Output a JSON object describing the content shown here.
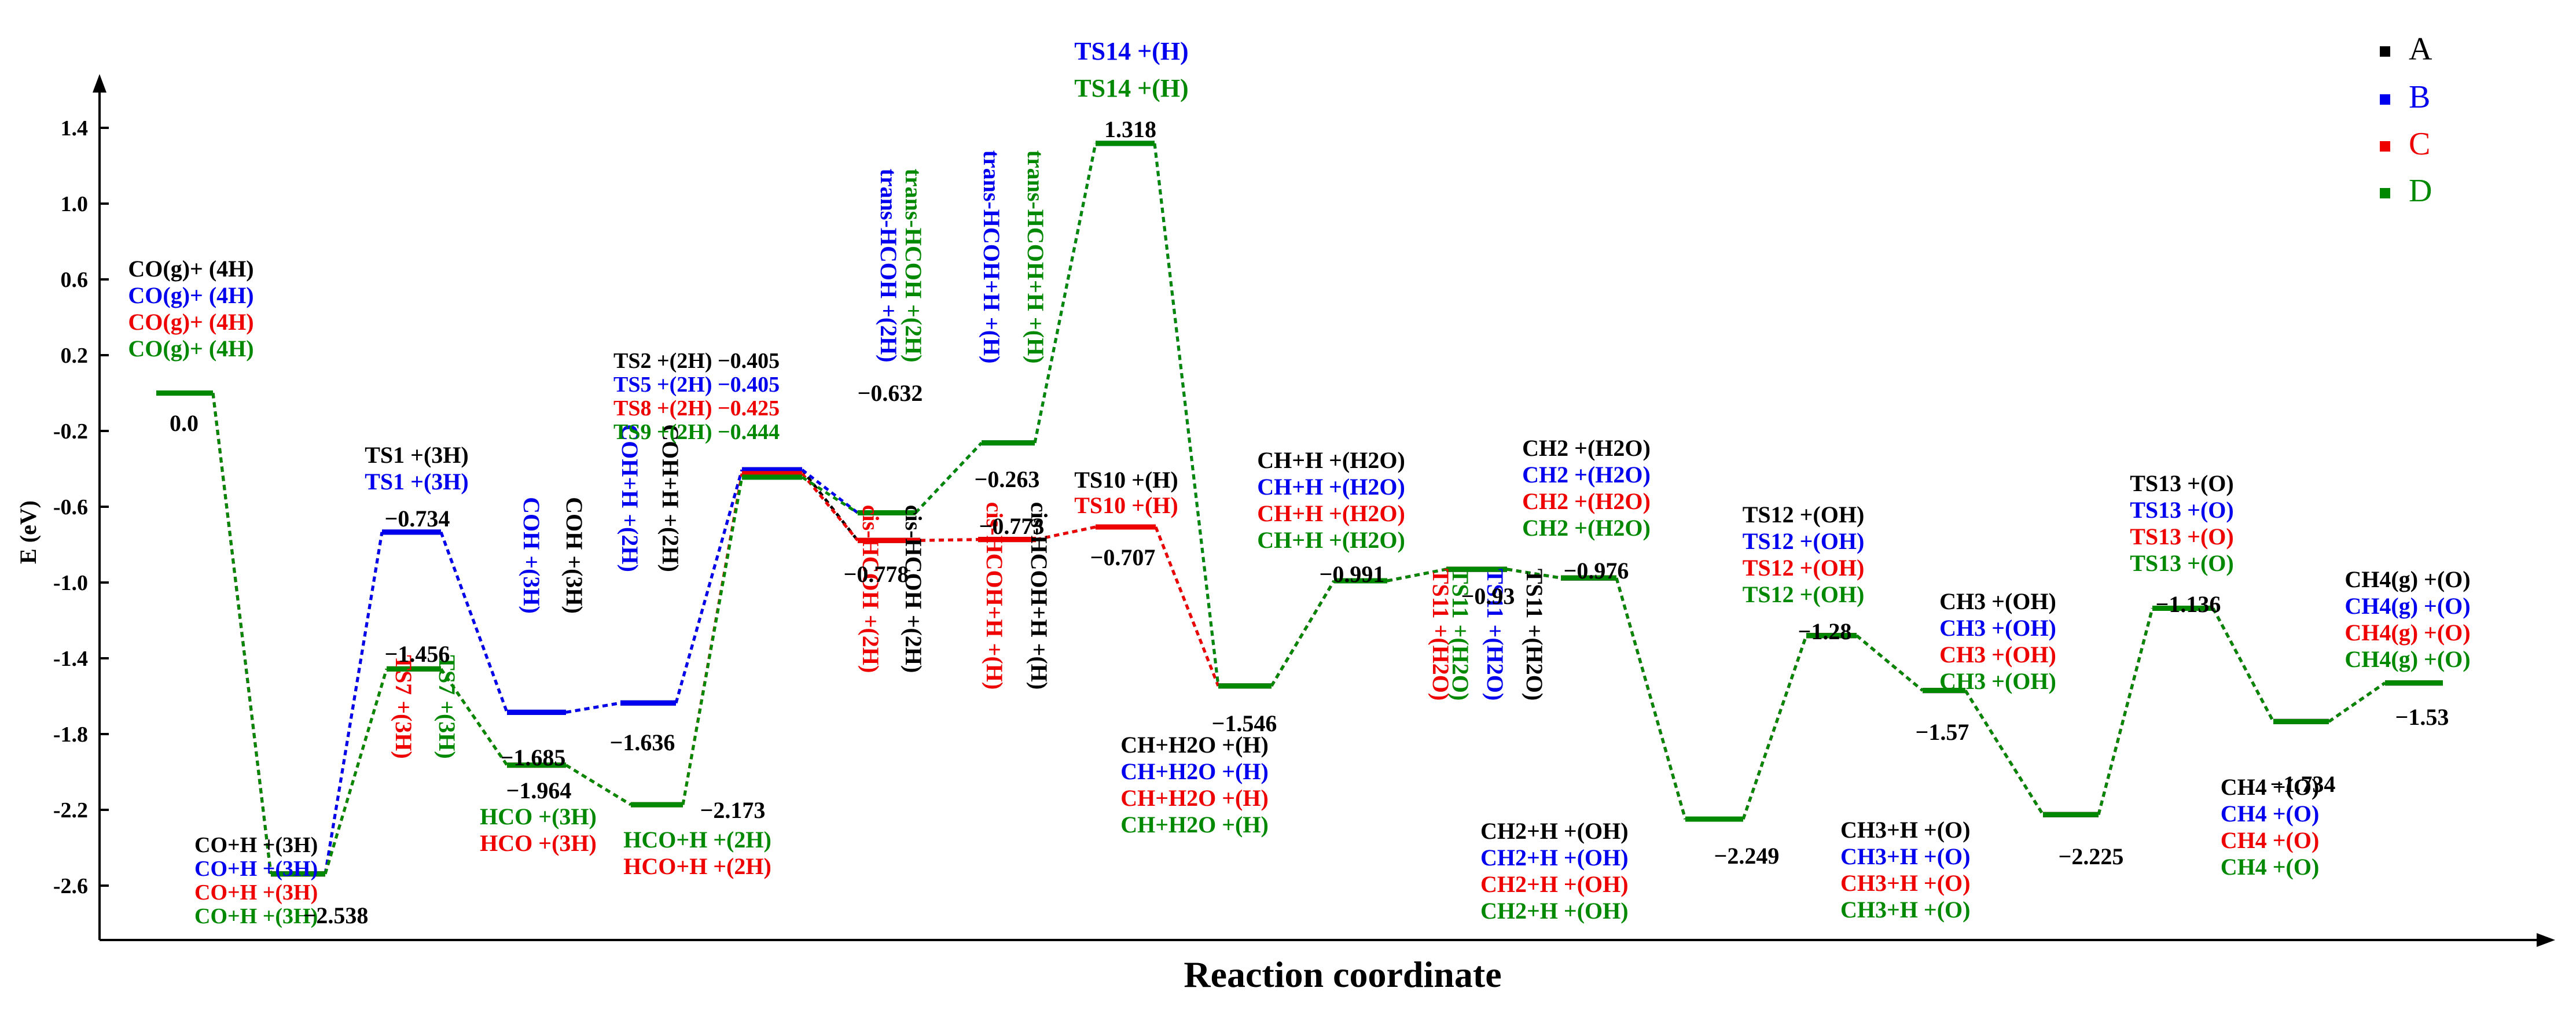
{
  "chart_data": {
    "type": "line",
    "title": "",
    "xlabel": "Reaction coordinate",
    "ylabel": "E (eV)",
    "ylim": [
      -2.75,
      1.65
    ],
    "yticks": [
      "1.4",
      "1.0",
      "0.6",
      "0.2",
      "-0.2",
      "-0.6",
      "-1.0",
      "-1.4",
      "-1.8",
      "-2.2",
      "-2.6"
    ],
    "grid": false,
    "legend_position": "top-right",
    "colors": {
      "A": "#000000",
      "B": "#0000ee",
      "C": "#ee0000",
      "D": "#008800"
    },
    "series": [
      {
        "name": "A",
        "color": "#000000"
      },
      {
        "name": "B",
        "color": "#0000ee"
      },
      {
        "name": "C",
        "color": "#ee0000"
      },
      {
        "name": "D",
        "color": "#008800"
      }
    ],
    "states": [
      {
        "id": "co_g",
        "energy": 0.0,
        "value_label": "0.0",
        "labels": [
          [
            "CO(g)+ (4H)",
            "A"
          ],
          [
            "CO(g)+ (4H)",
            "B"
          ],
          [
            "CO(g)+ (4H)",
            "C"
          ],
          [
            "CO(g)+ (4H)",
            "D"
          ]
        ]
      },
      {
        "id": "co_h",
        "energy": -2.538,
        "value_label": "−2.538",
        "labels": [
          [
            "CO+H +(3H)",
            "A"
          ],
          [
            "CO+H +(3H)",
            "B"
          ],
          [
            "CO+H +(3H)",
            "C"
          ],
          [
            "CO+H +(3H)",
            "D"
          ]
        ]
      },
      {
        "id": "ts1",
        "energy": -0.734,
        "value_label": "−0.734",
        "labels": [
          [
            "TS1 +(3H)",
            "A"
          ],
          [
            "TS1 +(3H)",
            "B"
          ]
        ]
      },
      {
        "id": "ts7",
        "energy": -1.456,
        "value_label": "−1.456",
        "labels": [
          [
            "TS7 +(3H)",
            "C"
          ],
          [
            "TS7 +(3H)",
            "D"
          ]
        ]
      },
      {
        "id": "coh",
        "energy": -1.685,
        "value_label": "−1.685",
        "labels": [
          [
            "COH +(3H)",
            "A"
          ],
          [
            "COH +(3H)",
            "B"
          ]
        ]
      },
      {
        "id": "hco",
        "energy": -1.964,
        "value_label": "−1.964",
        "labels": [
          [
            "HCO +(3H)",
            "D"
          ],
          [
            "HCO +(3H)",
            "C"
          ]
        ]
      },
      {
        "id": "coh_h",
        "energy": -1.636,
        "value_label": "−1.636",
        "labels": [
          [
            "COH+H +(2H)",
            "A"
          ],
          [
            "COH+H +(2H)",
            "B"
          ]
        ]
      },
      {
        "id": "hco_h",
        "energy": -2.173,
        "value_label": "−2.173",
        "labels": [
          [
            "HCO+H +(2H)",
            "D"
          ],
          [
            "HCO+H +(2H)",
            "C"
          ]
        ]
      },
      {
        "id": "ts2",
        "energy": -0.405,
        "value_label": "",
        "labels": [
          [
            "TS2 +(2H) −0.405",
            "A"
          ],
          [
            "TS5 +(2H) −0.405",
            "B"
          ],
          [
            "TS8 +(2H) −0.425",
            "C"
          ],
          [
            "TS9 +(2H) −0.444",
            "D"
          ]
        ],
        "energies": {
          "A": -0.405,
          "B": -0.405,
          "C": -0.425,
          "D": -0.444
        }
      },
      {
        "id": "trans_hcoh",
        "energy": -0.632,
        "value_label": "−0.632",
        "labels": [
          [
            "trans-HCOH +(2H)",
            "D"
          ],
          [
            "trans-HCOH +(2H)",
            "B"
          ]
        ]
      },
      {
        "id": "cis_hcoh",
        "energy": -0.778,
        "value_label": "−0.778",
        "labels": [
          [
            "cis-HCOH +(2H)",
            "A"
          ],
          [
            "cis-HCOH +(2H)",
            "C"
          ]
        ]
      },
      {
        "id": "trans_hcoh_h",
        "energy": -0.263,
        "value_label": "−0.263",
        "labels": [
          [
            "trans-HCOH+H +(H)",
            "D"
          ],
          [
            "trans-HCOH+H +(H)",
            "B"
          ]
        ]
      },
      {
        "id": "cis_hcoh_h",
        "energy": -0.773,
        "value_label": "−0.773",
        "labels": [
          [
            "cis-HCOH+H +(H)",
            "A"
          ],
          [
            "cis-HCOH+H +(H)",
            "C"
          ]
        ]
      },
      {
        "id": "ts14",
        "energy": 1.318,
        "value_label": "1.318",
        "labels": [
          [
            "TS14 +(H)",
            "B"
          ],
          [
            "TS14 +(H)",
            "D"
          ]
        ]
      },
      {
        "id": "ts10",
        "energy": -0.707,
        "value_label": "−0.707",
        "labels": [
          [
            "TS10 +(H)",
            "A"
          ],
          [
            "TS10 +(H)",
            "C"
          ]
        ]
      },
      {
        "id": "ch_h2o",
        "energy": -1.546,
        "value_label": "−1.546",
        "labels": [
          [
            "CH+H2O +(H)",
            "A"
          ],
          [
            "CH+H2O +(H)",
            "B"
          ],
          [
            "CH+H2O +(H)",
            "C"
          ],
          [
            "CH+H2O +(H)",
            "D"
          ]
        ]
      },
      {
        "id": "ch_h_h2o",
        "energy": -0.991,
        "value_label": "−0.991",
        "labels": [
          [
            "CH+H +(H2O)",
            "A"
          ],
          [
            "CH+H +(H2O)",
            "B"
          ],
          [
            "CH+H +(H2O)",
            "C"
          ],
          [
            "CH+H +(H2O)",
            "D"
          ]
        ]
      },
      {
        "id": "ts11",
        "energy": -0.93,
        "value_label": "−0.93",
        "labels": [
          [
            "TS11 +(H2O)",
            "A"
          ],
          [
            "TS11 +(H2O)",
            "B"
          ],
          [
            "TS11 +(H2O)",
            "D"
          ],
          [
            "TS11 +(H2O)",
            "C"
          ]
        ]
      },
      {
        "id": "ch2_h2o",
        "energy": -0.976,
        "value_label": "−0.976",
        "labels": [
          [
            "CH2 +(H2O)",
            "A"
          ],
          [
            "CH2 +(H2O)",
            "B"
          ],
          [
            "CH2 +(H2O)",
            "C"
          ],
          [
            "CH2 +(H2O)",
            "D"
          ]
        ]
      },
      {
        "id": "ch2_h_oh",
        "energy": -2.249,
        "value_label": "−2.249",
        "labels": [
          [
            "CH2+H +(OH)",
            "A"
          ],
          [
            "CH2+H +(OH)",
            "B"
          ],
          [
            "CH2+H +(OH)",
            "C"
          ],
          [
            "CH2+H +(OH)",
            "D"
          ]
        ]
      },
      {
        "id": "ts12",
        "energy": -1.28,
        "value_label": "−1.28",
        "labels": [
          [
            "TS12 +(OH)",
            "A"
          ],
          [
            "TS12 +(OH)",
            "B"
          ],
          [
            "TS12 +(OH)",
            "C"
          ],
          [
            "TS12 +(OH)",
            "D"
          ]
        ]
      },
      {
        "id": "ch3_oh",
        "energy": -1.57,
        "value_label": "−1.57",
        "labels": [
          [
            "CH3 +(OH)",
            "A"
          ],
          [
            "CH3 +(OH)",
            "B"
          ],
          [
            "CH3 +(OH)",
            "C"
          ],
          [
            "CH3 +(OH)",
            "D"
          ]
        ]
      },
      {
        "id": "ch3_h_o",
        "energy": -2.225,
        "value_label": "−2.225",
        "labels": [
          [
            "CH3+H +(O)",
            "A"
          ],
          [
            "CH3+H +(O)",
            "B"
          ],
          [
            "CH3+H +(O)",
            "C"
          ],
          [
            "CH3+H +(O)",
            "D"
          ]
        ]
      },
      {
        "id": "ts13",
        "energy": -1.136,
        "value_label": "−1.136",
        "labels": [
          [
            "TS13 +(O)",
            "A"
          ],
          [
            "TS13 +(O)",
            "B"
          ],
          [
            "TS13 +(O)",
            "C"
          ],
          [
            "TS13 +(O)",
            "D"
          ]
        ]
      },
      {
        "id": "ch4_o",
        "energy": -1.734,
        "value_label": "−1.734",
        "labels": [
          [
            "CH4 +(O)",
            "A"
          ],
          [
            "CH4 +(O)",
            "B"
          ],
          [
            "CH4 +(O)",
            "C"
          ],
          [
            "CH4 +(O)",
            "D"
          ]
        ]
      },
      {
        "id": "ch4_g",
        "energy": -1.53,
        "value_label": "−1.53",
        "labels": [
          [
            "CH4(g) +(O)",
            "A"
          ],
          [
            "CH4(g) +(O)",
            "B"
          ],
          [
            "CH4(g) +(O)",
            "C"
          ],
          [
            "CH4(g) +(O)",
            "D"
          ]
        ]
      }
    ],
    "pathways": {
      "A": [
        "co_g",
        "co_h",
        "ts1",
        "coh",
        "coh_h",
        "ts2",
        "cis_hcoh",
        "cis_hcoh_h",
        "ts10",
        "ch_h2o",
        "ch_h_h2o",
        "ts11",
        "ch2_h2o",
        "ch2_h_oh",
        "ts12",
        "ch3_oh",
        "ch3_h_o",
        "ts13",
        "ch4_o",
        "ch4_g"
      ],
      "B": [
        "co_g",
        "co_h",
        "ts1",
        "coh",
        "coh_h",
        "ts2",
        "trans_hcoh",
        "trans_hcoh_h",
        "ts14",
        "ch_h2o",
        "ch_h_h2o",
        "ts11",
        "ch2_h2o",
        "ch2_h_oh",
        "ts12",
        "ch3_oh",
        "ch3_h_o",
        "ts13",
        "ch4_o",
        "ch4_g"
      ],
      "C": [
        "co_g",
        "co_h",
        "ts7",
        "hco",
        "hco_h",
        "ts2",
        "cis_hcoh",
        "cis_hcoh_h",
        "ts10",
        "ch_h2o",
        "ch_h_h2o",
        "ts11",
        "ch2_h2o",
        "ch2_h_oh",
        "ts12",
        "ch3_oh",
        "ch3_h_o",
        "ts13",
        "ch4_o",
        "ch4_g"
      ],
      "D": [
        "co_g",
        "co_h",
        "ts7",
        "hco",
        "hco_h",
        "ts2",
        "trans_hcoh",
        "trans_hcoh_h",
        "ts14",
        "ch_h2o",
        "ch_h_h2o",
        "ts11",
        "ch2_h2o",
        "ch2_h_oh",
        "ts12",
        "ch3_oh",
        "ch3_h_o",
        "ts13",
        "ch4_o",
        "ch4_g"
      ]
    }
  }
}
